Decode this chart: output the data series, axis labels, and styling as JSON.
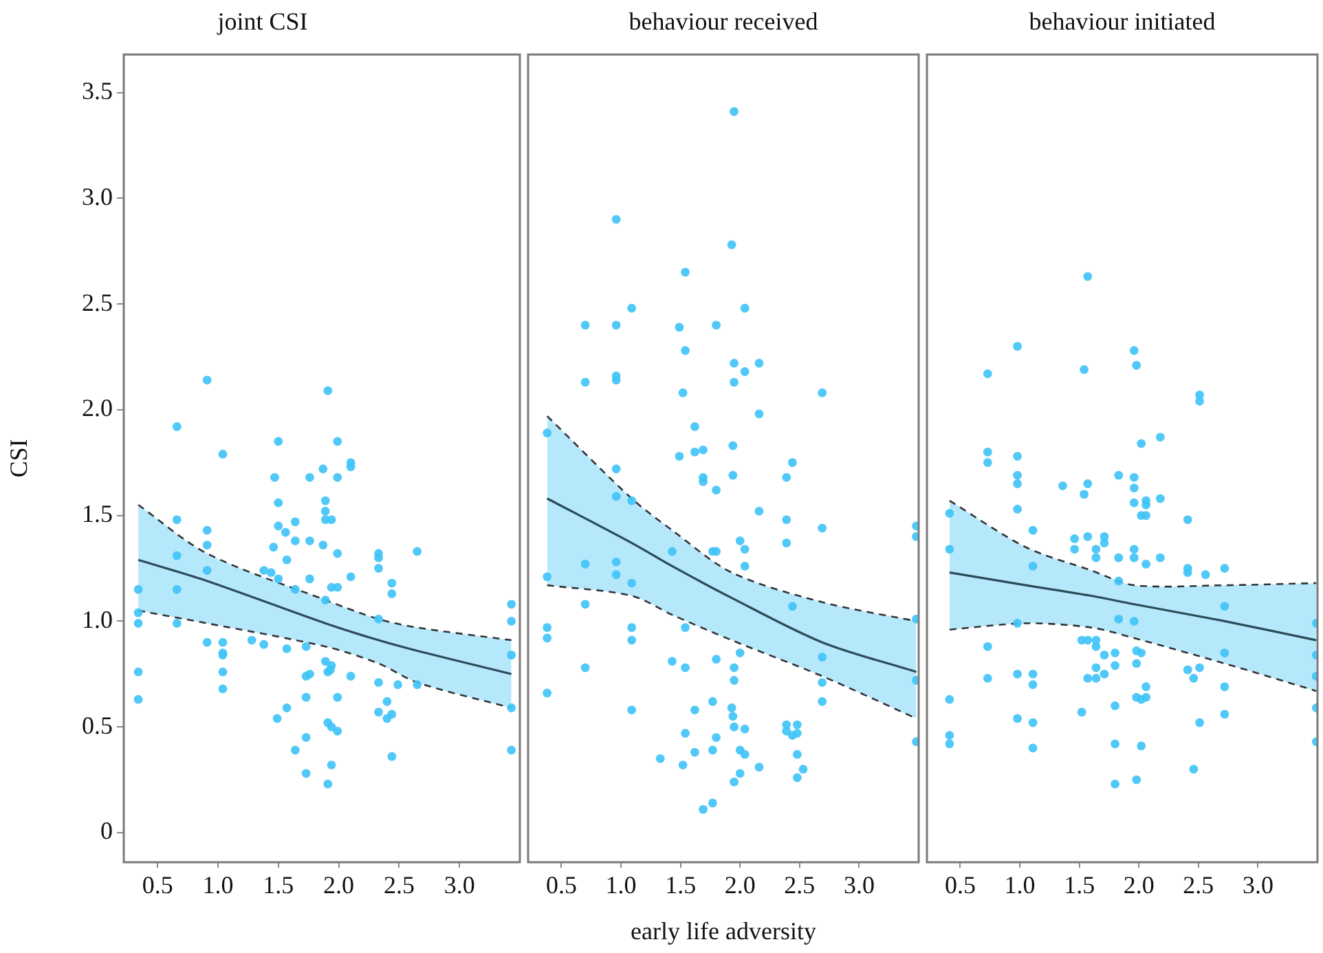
{
  "chart_data": [
    {
      "type": "scatter",
      "title": "joint CSI",
      "ylabel": "CSI",
      "xlim": [
        0.22,
        3.5
      ],
      "ylim": [
        -0.14,
        3.68
      ],
      "xticks": [
        0.5,
        {
          "value": 1,
          "label": "1.0"
        },
        1.5,
        {
          "value": 2,
          "label": "2.0"
        },
        2.5,
        {
          "value": 3,
          "label": "3.0"
        }
      ],
      "yticks": [
        0,
        0.5,
        {
          "value": 1,
          "label": "1.0"
        },
        1.5,
        {
          "value": 2,
          "label": "2.0"
        },
        2.5,
        {
          "value": 3,
          "label": "3.0"
        },
        3.5
      ],
      "series": [
        {
          "marker": "circle",
          "color": "#3ec3f7",
          "x": [
            0.91,
            1.91,
            0.66,
            1.04,
            1.5,
            1.99,
            2.1,
            2.1,
            1.87,
            1.47,
            1.76,
            1.99,
            1.5,
            1.89,
            1.89,
            1.89,
            1.94,
            1.64,
            1.5,
            1.56,
            1.64,
            1.76,
            0.66,
            0.91,
            0.91,
            1.87,
            1.99,
            2.33,
            2.33,
            2.65,
            1.46,
            1.57,
            0.66,
            0.91,
            2.33,
            1.38,
            1.44,
            1.5,
            2.1,
            1.76,
            2.44,
            2.44,
            0.34,
            0.66,
            1.94,
            1.99,
            1.64,
            1.89,
            0.34,
            0.34,
            0.66,
            2.33,
            0.91,
            1.04,
            1.04,
            1.04,
            1.28,
            1.38,
            1.57,
            1.73,
            1.89,
            1.91,
            1.93,
            1.94,
            2.1,
            1.73,
            1.76,
            2.33,
            2.49,
            2.65,
            1.04,
            0.34,
            1.04,
            0.34,
            1.73,
            1.99,
            2.4,
            2.44,
            2.4,
            2.33,
            1.57,
            1.49,
            1.91,
            1.94,
            1.99,
            1.73,
            1.64,
            2.44,
            1.73,
            1.94,
            1.91,
            3.43,
            3.43,
            3.43,
            3.43,
            3.43
          ],
          "values": [
            2.14,
            2.09,
            1.92,
            1.79,
            1.85,
            1.85,
            1.75,
            1.73,
            1.72,
            1.68,
            1.68,
            1.68,
            1.56,
            1.57,
            1.52,
            1.48,
            1.48,
            1.47,
            1.45,
            1.42,
            1.38,
            1.38,
            1.48,
            1.43,
            1.36,
            1.36,
            1.32,
            1.32,
            1.3,
            1.33,
            1.35,
            1.29,
            1.31,
            1.24,
            1.25,
            1.24,
            1.23,
            1.2,
            1.21,
            1.2,
            1.18,
            1.13,
            1.15,
            1.15,
            1.16,
            1.16,
            1.15,
            1.1,
            1.04,
            0.99,
            0.99,
            1.01,
            0.9,
            0.9,
            0.85,
            0.84,
            0.91,
            0.89,
            0.87,
            0.88,
            0.81,
            0.76,
            0.77,
            0.79,
            0.74,
            0.74,
            0.75,
            0.71,
            0.7,
            0.7,
            0.76,
            0.76,
            0.68,
            0.63,
            0.64,
            0.64,
            0.62,
            0.56,
            0.54,
            0.57,
            0.59,
            0.54,
            0.52,
            0.5,
            0.48,
            0.45,
            0.39,
            0.36,
            0.28,
            0.32,
            0.23,
            1.08,
            1.0,
            0.84,
            0.59,
            0.39
          ]
        },
        {
          "type": "line",
          "marker": "none",
          "color": "#2b4c58",
          "x": [
            0.34,
            0.91,
            1.89,
            2.33,
            2.65,
            3.43
          ],
          "values": [
            1.29,
            1.19,
            0.99,
            0.91,
            0.86,
            0.75
          ],
          "upper": [
            1.55,
            1.32,
            1.1,
            1.01,
            0.97,
            0.91
          ],
          "lower": [
            1.05,
            0.99,
            0.88,
            0.8,
            0.71,
            0.59
          ]
        },
        {
          "type": "line",
          "marker": "none",
          "line_style": "dashed",
          "color": "#333333",
          "x": [
            0.34,
            0.91,
            1.89,
            2.33,
            2.65,
            3.43
          ],
          "values": [
            1.55,
            1.32,
            1.1,
            1.01,
            0.97,
            0.91
          ]
        },
        {
          "type": "line",
          "marker": "none",
          "line_style": "dashed",
          "color": "#333333",
          "x": [
            0.34,
            0.91,
            1.89,
            2.33,
            2.65,
            3.43
          ],
          "values": [
            1.05,
            0.99,
            0.88,
            0.8,
            0.71,
            0.59
          ]
        }
      ]
    },
    {
      "type": "scatter",
      "title": "behaviour received",
      "xlabel": "early life adversity",
      "tick_labels": "x",
      "xlim": [
        0.22,
        3.5
      ],
      "ylim": [
        -0.14,
        3.68
      ],
      "xticks": [
        0.5,
        {
          "value": 1,
          "label": "1.0"
        },
        1.5,
        {
          "value": 2,
          "label": "2.0"
        },
        2.5,
        {
          "value": 3,
          "label": "3.0"
        }
      ],
      "series": [
        {
          "marker": "circle",
          "color": "#3ec3f7",
          "x": [
            1.95,
            0.96,
            1.93,
            1.54,
            1.09,
            2.04,
            0.7,
            0.96,
            1.49,
            1.8,
            1.54,
            1.95,
            2.16,
            2.04,
            1.95,
            0.7,
            0.96,
            0.96,
            1.52,
            2.69,
            2.16,
            1.62,
            0.38,
            1.94,
            1.69,
            1.62,
            1.49,
            2.44,
            0.96,
            1.94,
            1.69,
            1.69,
            2.39,
            1.8,
            0.96,
            1.09,
            2.16,
            2.39,
            2.69,
            3.48,
            3.48,
            2.39,
            2.0,
            2.04,
            1.77,
            1.8,
            1.43,
            2.04,
            0.7,
            0.96,
            0.96,
            0.38,
            1.09,
            0.7,
            2.44,
            0.38,
            0.38,
            1.09,
            1.09,
            1.54,
            3.48,
            2.69,
            2.0,
            1.8,
            1.43,
            1.54,
            1.95,
            1.95,
            0.7,
            3.48,
            2.69,
            2.69,
            0.38,
            1.77,
            1.62,
            1.09,
            1.93,
            1.94,
            1.95,
            2.04,
            2.39,
            2.39,
            2.48,
            2.44,
            2.48,
            3.48,
            1.54,
            1.8,
            1.62,
            1.77,
            2.0,
            2.04,
            1.33,
            1.52,
            2.16,
            2.48,
            2.53,
            2.48,
            2.0,
            1.95,
            1.77,
            1.69
          ],
          "values": [
            3.41,
            2.9,
            2.78,
            2.65,
            2.48,
            2.48,
            2.4,
            2.4,
            2.39,
            2.4,
            2.28,
            2.22,
            2.22,
            2.18,
            2.13,
            2.13,
            2.16,
            2.14,
            2.08,
            2.08,
            1.98,
            1.92,
            1.89,
            1.83,
            1.81,
            1.8,
            1.78,
            1.75,
            1.72,
            1.69,
            1.68,
            1.66,
            1.68,
            1.62,
            1.59,
            1.57,
            1.52,
            1.48,
            1.44,
            1.45,
            1.4,
            1.37,
            1.38,
            1.34,
            1.33,
            1.33,
            1.33,
            1.26,
            1.27,
            1.28,
            1.22,
            1.21,
            1.18,
            1.08,
            1.07,
            0.97,
            0.92,
            0.97,
            0.91,
            0.97,
            1.01,
            0.83,
            0.85,
            0.82,
            0.81,
            0.78,
            0.78,
            0.72,
            0.78,
            0.72,
            0.71,
            0.62,
            0.66,
            0.62,
            0.58,
            0.58,
            0.59,
            0.55,
            0.5,
            0.49,
            0.51,
            0.48,
            0.51,
            0.46,
            0.47,
            0.43,
            0.47,
            0.45,
            0.38,
            0.39,
            0.39,
            0.37,
            0.35,
            0.32,
            0.31,
            0.37,
            0.3,
            0.26,
            0.28,
            0.24,
            0.14,
            0.11
          ]
        },
        {
          "type": "line",
          "marker": "none",
          "color": "#2b4c58",
          "x": [
            0.38,
            1.09,
            1.43,
            1.93,
            2.69,
            3.48
          ],
          "values": [
            1.58,
            1.37,
            1.26,
            1.11,
            0.9,
            0.76
          ],
          "upper": [
            1.97,
            1.58,
            1.43,
            1.23,
            1.09,
            1.0
          ],
          "lower": [
            1.17,
            1.12,
            1.03,
            0.91,
            0.74,
            0.54
          ]
        },
        {
          "type": "line",
          "marker": "none",
          "line_style": "dashed",
          "color": "#333333",
          "x": [
            0.38,
            1.09,
            1.43,
            1.93,
            2.69,
            3.48
          ],
          "values": [
            1.97,
            1.58,
            1.43,
            1.23,
            1.09,
            1.0
          ]
        },
        {
          "type": "line",
          "marker": "none",
          "line_style": "dashed",
          "color": "#333333",
          "x": [
            0.38,
            1.09,
            1.43,
            1.93,
            2.69,
            3.48
          ],
          "values": [
            1.17,
            1.12,
            1.03,
            0.91,
            0.74,
            0.54
          ]
        }
      ]
    },
    {
      "type": "scatter",
      "title": "behaviour initiated",
      "tick_labels": "x",
      "xlim": [
        0.22,
        3.5
      ],
      "ylim": [
        -0.14,
        3.68
      ],
      "xticks": [
        0.5,
        {
          "value": 1,
          "label": "1.0"
        },
        1.5,
        {
          "value": 2,
          "label": "2.0"
        },
        2.5,
        {
          "value": 3,
          "label": "3.0"
        }
      ],
      "series": [
        {
          "marker": "circle",
          "color": "#3ec3f7",
          "x": [
            1.57,
            0.98,
            1.96,
            1.98,
            1.54,
            0.73,
            2.51,
            2.51,
            2.18,
            2.02,
            0.73,
            0.73,
            0.98,
            0.98,
            0.98,
            1.83,
            1.96,
            1.96,
            1.96,
            2.06,
            2.06,
            2.02,
            2.06,
            2.18,
            1.36,
            1.57,
            1.54,
            0.98,
            2.41,
            0.41,
            1.11,
            1.46,
            1.46,
            1.57,
            1.71,
            1.71,
            1.64,
            1.64,
            1.83,
            1.96,
            1.96,
            2.06,
            2.18,
            0.41,
            1.11,
            2.41,
            2.41,
            2.56,
            2.72,
            1.83,
            2.72,
            3.49,
            0.98,
            1.96,
            1.83,
            1.52,
            1.57,
            1.64,
            1.64,
            0.73,
            1.98,
            2.02,
            1.98,
            1.71,
            1.8,
            1.8,
            2.72,
            3.49,
            1.64,
            1.71,
            1.64,
            1.57,
            2.41,
            2.46,
            2.51,
            0.73,
            0.98,
            1.11,
            1.11,
            3.49,
            2.06,
            2.72,
            1.98,
            2.02,
            2.06,
            0.41,
            1.8,
            1.52,
            2.72,
            3.49,
            0.98,
            1.11,
            2.51,
            0.41,
            0.41,
            3.49,
            1.11,
            1.8,
            2.02,
            2.46,
            1.98,
            1.8
          ],
          "values": [
            2.63,
            2.3,
            2.28,
            2.21,
            2.19,
            2.17,
            2.07,
            2.04,
            1.87,
            1.84,
            1.8,
            1.75,
            1.78,
            1.69,
            1.65,
            1.69,
            1.68,
            1.63,
            1.56,
            1.57,
            1.55,
            1.5,
            1.5,
            1.58,
            1.64,
            1.65,
            1.6,
            1.53,
            1.48,
            1.51,
            1.43,
            1.39,
            1.34,
            1.4,
            1.4,
            1.37,
            1.34,
            1.3,
            1.3,
            1.3,
            1.34,
            1.27,
            1.3,
            1.34,
            1.26,
            1.25,
            1.23,
            1.22,
            1.25,
            1.19,
            1.07,
            0.99,
            0.99,
            1.0,
            1.01,
            0.91,
            0.91,
            0.91,
            0.88,
            0.88,
            0.86,
            0.85,
            0.8,
            0.84,
            0.85,
            0.79,
            0.85,
            0.84,
            0.78,
            0.75,
            0.73,
            0.73,
            0.77,
            0.73,
            0.78,
            0.73,
            0.75,
            0.75,
            0.7,
            0.74,
            0.69,
            0.69,
            0.64,
            0.63,
            0.64,
            0.63,
            0.6,
            0.57,
            0.56,
            0.59,
            0.54,
            0.52,
            0.52,
            0.46,
            0.42,
            0.43,
            0.4,
            0.42,
            0.41,
            0.3,
            0.25,
            0.23
          ]
        },
        {
          "type": "line",
          "marker": "none",
          "color": "#2b4c58",
          "x": [
            0.41,
            1.05,
            1.6,
            1.96,
            2.72,
            3.49
          ],
          "values": [
            1.23,
            1.17,
            1.12,
            1.08,
            1.0,
            0.91
          ],
          "upper": [
            1.57,
            1.35,
            1.24,
            1.17,
            1.17,
            1.18
          ],
          "lower": [
            0.96,
            0.99,
            0.97,
            0.92,
            0.8,
            0.67
          ]
        },
        {
          "type": "line",
          "marker": "none",
          "line_style": "dashed",
          "color": "#333333",
          "x": [
            0.41,
            1.05,
            1.6,
            1.96,
            2.72,
            3.49
          ],
          "values": [
            1.57,
            1.35,
            1.24,
            1.17,
            1.17,
            1.18
          ]
        },
        {
          "type": "line",
          "marker": "none",
          "line_style": "dashed",
          "color": "#333333",
          "x": [
            0.41,
            1.05,
            1.6,
            1.96,
            2.72,
            3.49
          ],
          "values": [
            0.96,
            0.99,
            0.97,
            0.92,
            0.8,
            0.67
          ]
        }
      ]
    }
  ]
}
